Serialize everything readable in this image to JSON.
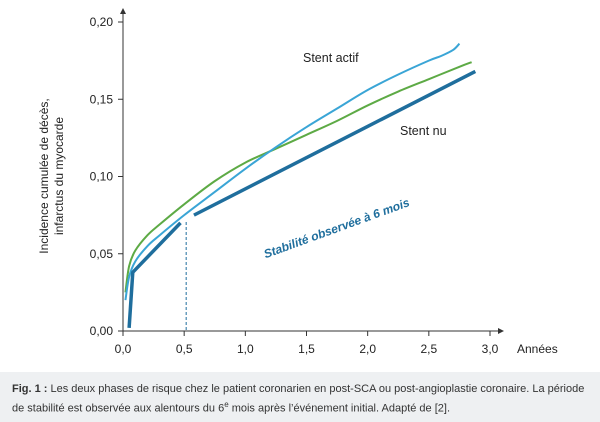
{
  "chart_data": {
    "type": "line",
    "xlabel": "Années",
    "ylabel": "Incidence cumulée de décès, infarctus du myocarde",
    "ylabel_lines": [
      "Incidence cumulée de décès,",
      "infarctus du myocarde"
    ],
    "xlim": [
      0,
      3.0
    ],
    "ylim": [
      0,
      0.2
    ],
    "x_ticks": [
      "0,0",
      "0,5",
      "1,0",
      "1,5",
      "2,0",
      "2,5",
      "3,0"
    ],
    "y_ticks": [
      "0,00",
      "0,05",
      "0,10",
      "0,15",
      "0,20"
    ],
    "grid": false,
    "series": [
      {
        "name": "Stent actif",
        "color": "#3aa5d6",
        "x": [
          0.02,
          0.05,
          0.1,
          0.2,
          0.3,
          0.5,
          0.75,
          1.0,
          1.25,
          1.5,
          1.75,
          2.0,
          2.25,
          2.5,
          2.6,
          2.7,
          2.75
        ],
        "y": [
          0.02,
          0.035,
          0.045,
          0.055,
          0.062,
          0.075,
          0.09,
          0.105,
          0.119,
          0.132,
          0.144,
          0.156,
          0.166,
          0.175,
          0.178,
          0.182,
          0.186
        ]
      },
      {
        "name": "",
        "color": "#5daa45",
        "x": [
          0.02,
          0.05,
          0.1,
          0.2,
          0.3,
          0.5,
          0.75,
          1.0,
          1.25,
          1.5,
          1.75,
          2.0,
          2.25,
          2.5,
          2.75,
          2.85
        ],
        "y": [
          0.025,
          0.042,
          0.052,
          0.062,
          0.069,
          0.082,
          0.097,
          0.109,
          0.118,
          0.127,
          0.136,
          0.146,
          0.155,
          0.163,
          0.171,
          0.174
        ]
      },
      {
        "name": "Stent nu",
        "color": "#1f6e9d",
        "segments": [
          {
            "x": [
              0.05,
              0.08,
              0.47
            ],
            "y": [
              0.002,
              0.038,
              0.07
            ]
          },
          {
            "x": [
              0.58,
              2.88
            ],
            "y": [
              0.075,
              0.168
            ]
          }
        ]
      }
    ],
    "annotations": [
      {
        "text": "Stabilité observée à 6 mois",
        "x": 0.5,
        "type": "vertical-dashed-line"
      }
    ]
  },
  "caption": {
    "label": "Fig. 1 :",
    "text_before_sup": " Les deux phases de risque chez le patient coronarien en post-SCA ou post-angioplastie coronaire. La période de stabilité est observée aux alentours du 6",
    "sup": "e",
    "text_after_sup": " mois après l’événement initial. Adapté de [2]."
  }
}
